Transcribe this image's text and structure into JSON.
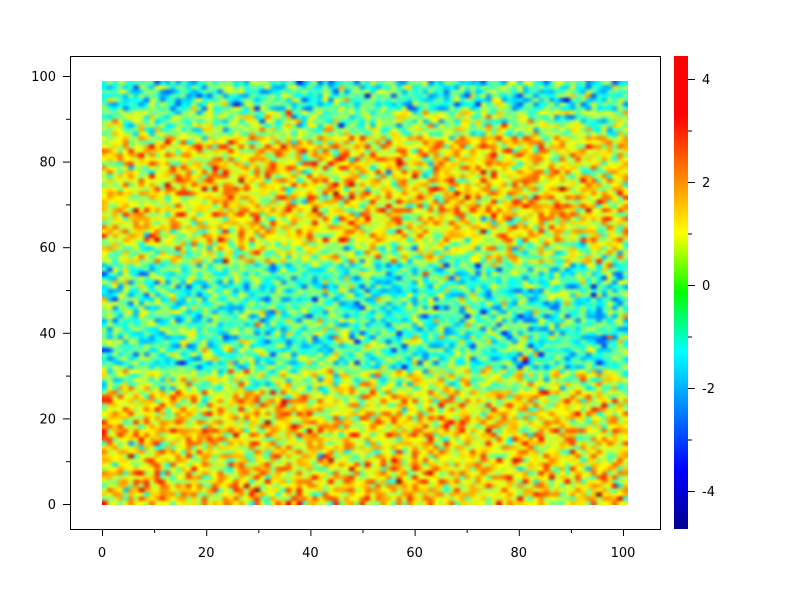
{
  "chart_data": {
    "type": "heatmap",
    "title": "",
    "xlabel": "",
    "ylabel": "",
    "x_range": [
      0,
      99
    ],
    "y_range": [
      0,
      99
    ],
    "xlim": [
      -6,
      105
    ],
    "ylim": [
      -6,
      106
    ],
    "x_ticks": [
      "0",
      "20",
      "40",
      "60",
      "80",
      "100"
    ],
    "y_ticks": [
      "0",
      "20",
      "40",
      "60",
      "80",
      "100"
    ],
    "grid": false,
    "colormap": "jet",
    "colorbar": {
      "range": [
        -4.74,
        4.45
      ],
      "ticks": [
        "4",
        "2",
        "0",
        "-2",
        "-4"
      ],
      "placement": "right"
    },
    "description_of_values": "random noise field on a 100x100 grid, higher (yellow/orange) in y≈0-25 and y≈60-85, lower (green/cyan) in y≈30-55 and near y≈95-99"
  }
}
